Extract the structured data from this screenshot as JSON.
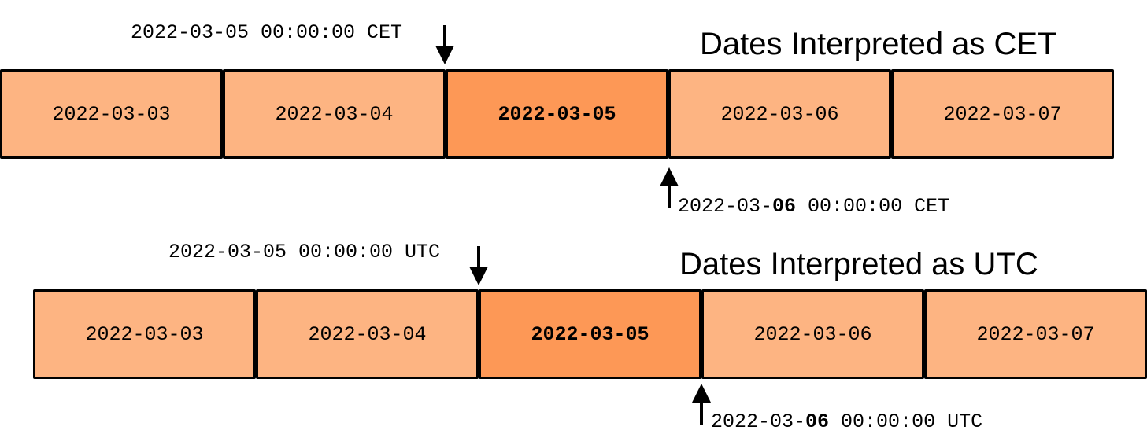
{
  "panels": [
    {
      "title": "Dates Interpreted as CET",
      "start_label": "2022-03-05 00:00:00 CET",
      "end_label": {
        "prefix": "2022-03-",
        "bold": "06",
        "suffix": " 00:00:00 CET"
      },
      "days": [
        {
          "label": "2022-03-03",
          "highlight": false
        },
        {
          "label": "2022-03-04",
          "highlight": false
        },
        {
          "label": "2022-03-05",
          "highlight": true
        },
        {
          "label": "2022-03-06",
          "highlight": false
        },
        {
          "label": "2022-03-07",
          "highlight": false
        }
      ]
    },
    {
      "title": "Dates Interpreted as UTC",
      "start_label": "2022-03-05 00:00:00 UTC",
      "end_label": {
        "prefix": "2022-03-",
        "bold": "06",
        "suffix": " 00:00:00 UTC"
      },
      "days": [
        {
          "label": "2022-03-03",
          "highlight": false
        },
        {
          "label": "2022-03-04",
          "highlight": false
        },
        {
          "label": "2022-03-05",
          "highlight": true
        },
        {
          "label": "2022-03-06",
          "highlight": false
        },
        {
          "label": "2022-03-07",
          "highlight": false
        }
      ]
    }
  ],
  "colors": {
    "day_fill": "#fdb482",
    "highlight_fill": "#fd9856",
    "border": "#000000"
  }
}
